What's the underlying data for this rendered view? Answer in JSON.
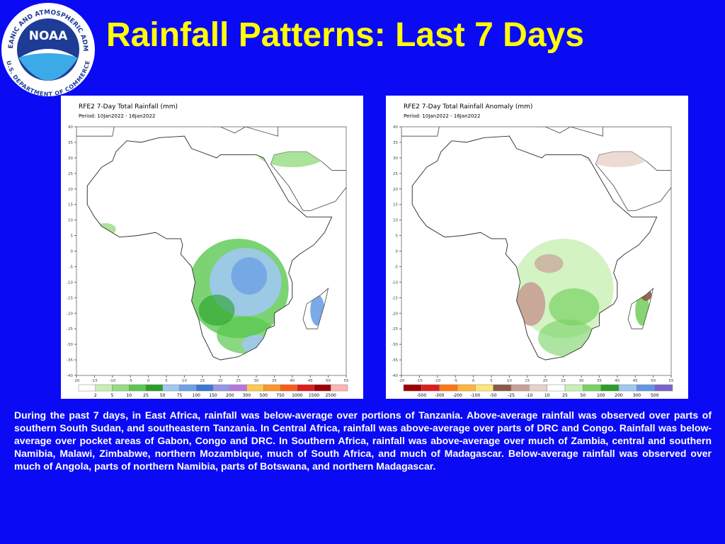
{
  "logo": {
    "name": "NOAA",
    "ring_top": "NATIONAL OCEANIC AND ATMOSPHERIC ADMINISTRATION",
    "ring_bottom": "U.S. DEPARTMENT OF COMMERCE"
  },
  "title": "Rainfall Patterns: Last 7 Days",
  "maps": [
    {
      "title": "RFE2 7-Day Total Rainfall (mm)",
      "period": "Period: 10Jan2022 - 16Jan2022",
      "lat_labels": [
        "40",
        "35",
        "30",
        "25",
        "20",
        "15",
        "10",
        "5",
        "0",
        "-5",
        "-10",
        "-15",
        "-20",
        "-25",
        "-30",
        "-35",
        "-40"
      ],
      "lon_labels": [
        "-20",
        "-15",
        "-10",
        "-5",
        "0",
        "5",
        "10",
        "15",
        "20",
        "25",
        "30",
        "35",
        "40",
        "45",
        "50",
        "55"
      ],
      "colorbar_labels": [
        "2",
        "5",
        "10",
        "25",
        "50",
        "75",
        "100",
        "150",
        "200",
        "300",
        "500",
        "750",
        "1000",
        "1500",
        "2500"
      ],
      "colorbar_colors": [
        "#ffffff",
        "#c8f0b4",
        "#96dc82",
        "#5ac850",
        "#28a028",
        "#a0c8f0",
        "#6ea0e6",
        "#3c78d2",
        "#9696e6",
        "#b478dc",
        "#ffc850",
        "#ff9628",
        "#ff5a14",
        "#dc1e1e",
        "#a00000",
        "#ffb4b4"
      ]
    },
    {
      "title": "RFE2 7-Day Total Rainfall Anomaly (mm)",
      "period": "Period: 10Jan2022 - 16Jan2022",
      "lat_labels": [
        "40",
        "35",
        "30",
        "25",
        "20",
        "15",
        "10",
        "5",
        "0",
        "-5",
        "-10",
        "-15",
        "-20",
        "-25",
        "-30",
        "-35",
        "-40"
      ],
      "lon_labels": [
        "-20",
        "-15",
        "-10",
        "-5",
        "0",
        "5",
        "10",
        "15",
        "20",
        "25",
        "30",
        "35",
        "40",
        "45",
        "50",
        "55"
      ],
      "colorbar_labels": [
        "-500",
        "-300",
        "-200",
        "-100",
        "-50",
        "-25",
        "-10",
        "10",
        "25",
        "50",
        "100",
        "200",
        "300",
        "500"
      ],
      "colorbar_colors": [
        "#a00000",
        "#dc1e1e",
        "#ff7814",
        "#ffb43c",
        "#ffe678",
        "#8c5a46",
        "#c8a096",
        "#e6d2c8",
        "#ffffff",
        "#c8f0b4",
        "#78d264",
        "#28a028",
        "#a0c8f0",
        "#6496e6",
        "#7864c8"
      ]
    }
  ],
  "summary": "During the past 7 days, in East Africa, rainfall was below-average over portions of Tanzania. Above-average rainfall was observed over parts of southern South Sudan, and southeastern Tanzania. In Central Africa, rainfall was above-average over parts of DRC and Congo. Rainfall was below-average over pocket areas of Gabon, Congo and DRC. In Southern Africa, rainfall was above-average over much of Zambia, central and southern Namibia, Malawi, Zimbabwe, northern Mozambique, much of South Africa, and much of Madagascar. Below-average rainfall was observed over much of Angola, parts of northern Namibia, parts of Botswana, and northern Madagascar."
}
